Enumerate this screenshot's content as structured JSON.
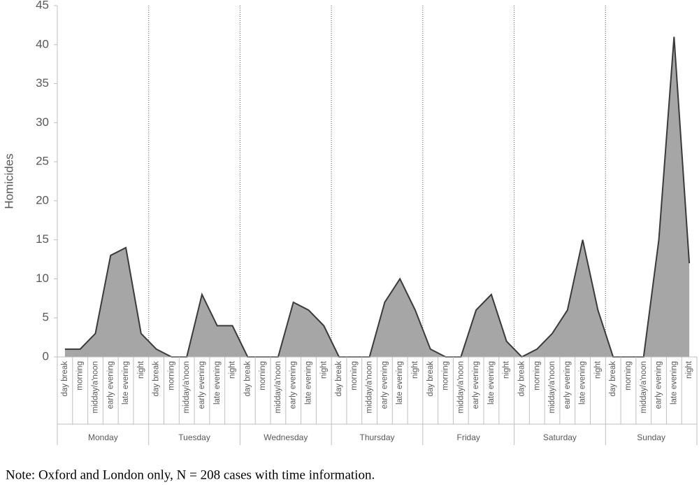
{
  "chart_data": {
    "type": "area",
    "y_label": "Homicides",
    "categories": [
      "day break",
      "morning",
      "midday/a'noon",
      "early evening",
      "late evening",
      "night",
      "day break",
      "morning",
      "midday/a'noon",
      "early evening",
      "late evening",
      "night",
      "day break",
      "morning",
      "midday/a'noon",
      "early evening",
      "late evening",
      "night",
      "day break",
      "morning",
      "midday/a'noon",
      "early evening",
      "late evening",
      "night",
      "day break",
      "morning",
      "midday/a'noon",
      "early evening",
      "late evening",
      "night",
      "day break",
      "morning",
      "midday/a'noon",
      "early evening",
      "late evening",
      "night",
      "day break",
      "morning",
      "midday/a'noon",
      "early evening",
      "late evening",
      "night"
    ],
    "groups": [
      "Monday",
      "Tuesday",
      "Wednesday",
      "Thursday",
      "Friday",
      "Saturday",
      "Sunday"
    ],
    "values": [
      1,
      1,
      3,
      13,
      14,
      3,
      1,
      0,
      0,
      8,
      4,
      4,
      0,
      0,
      0,
      7,
      6,
      4,
      0,
      0,
      0,
      7,
      10,
      6,
      1,
      0,
      0,
      6,
      8,
      2,
      0,
      1,
      3,
      6,
      15,
      6,
      0,
      0,
      0,
      15,
      41,
      12
    ],
    "color": "#a6a6a6",
    "line_color": "#3a3a3a",
    "ylim": [
      0,
      45
    ],
    "yticks": [
      0,
      5,
      10,
      15,
      20,
      25,
      30,
      35,
      40,
      45
    ],
    "note": "Note: Oxford and London only, N = 208 cases with time information."
  }
}
